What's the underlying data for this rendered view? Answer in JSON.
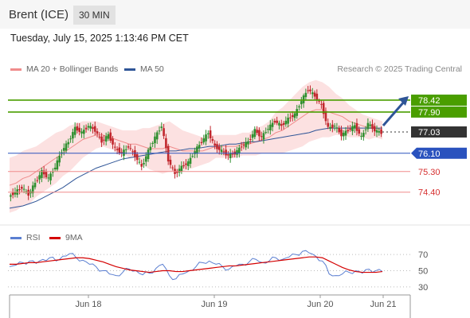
{
  "header": {
    "title": "Brent (ICE)",
    "interval": "30 MIN",
    "timestamp": "Tuesday, July 15, 2025 1:13:46 PM CET"
  },
  "legend": {
    "ma20": {
      "label": "MA 20 + Bollinger Bands",
      "color": "#f08c8c"
    },
    "ma50": {
      "label": "MA 50",
      "color": "#2f5597"
    },
    "watermark": "Research © 2025 Trading Central"
  },
  "rsi_legend": {
    "rsi": {
      "label": "RSI",
      "color": "#5b7fd1"
    },
    "ma9": {
      "label": "9MA",
      "color": "#d40000"
    }
  },
  "chart_data": [
    {
      "type": "candlestick",
      "ylim": [
        73.0,
        79.6
      ],
      "x_labels": [
        "Jun 18",
        "Jun 19",
        "Jun 20",
        "Jun 21"
      ],
      "levels": [
        {
          "value": 78.42,
          "label": "78.42",
          "color": "#4a9e00",
          "style": "resistance"
        },
        {
          "value": 77.9,
          "label": "77.90",
          "color": "#4a9e00",
          "style": "resistance"
        },
        {
          "value": 77.03,
          "label": "77.03",
          "color": "#333333",
          "style": "last-price"
        },
        {
          "value": 76.1,
          "label": "76.10",
          "color": "#2a52be",
          "style": "pivot"
        },
        {
          "value": 75.3,
          "label": "75.30",
          "color": "#d62f2f",
          "style": "support"
        },
        {
          "value": 74.4,
          "label": "74.40",
          "color": "#d62f2f",
          "style": "support"
        }
      ],
      "close_path": [
        74.2,
        74.4,
        74.6,
        74.3,
        74.8,
        75.3,
        75.0,
        75.5,
        76.2,
        76.6,
        77.2,
        77.0,
        77.3,
        77.1,
        76.6,
        76.9,
        76.3,
        76.1,
        76.4,
        76.0,
        75.5,
        76.2,
        76.8,
        77.3,
        75.8,
        75.2,
        75.5,
        75.7,
        76.2,
        76.6,
        77.0,
        76.4,
        76.2,
        76.0,
        76.1,
        76.4,
        76.6,
        77.1,
        76.8,
        77.2,
        77.5,
        77.3,
        77.6,
        77.8,
        78.4,
        78.9,
        78.6,
        78.2,
        77.2,
        77.3,
        76.9,
        77.1,
        77.3,
        76.8,
        77.4,
        77.1,
        77.0
      ],
      "ma20": [
        74.7,
        74.8,
        75.0,
        75.1,
        75.3,
        75.5,
        75.7,
        75.9,
        76.1,
        76.3,
        76.5,
        76.7,
        76.8,
        76.9,
        76.9,
        76.8,
        76.7,
        76.6,
        76.5,
        76.5,
        76.4,
        76.3,
        76.3,
        76.3,
        76.4,
        76.3,
        76.2,
        76.2,
        76.2,
        76.2,
        76.3,
        76.4,
        76.4,
        76.4,
        76.4,
        76.5,
        76.5,
        76.6,
        76.7,
        76.8,
        77.0,
        77.1,
        77.3,
        77.5,
        77.7,
        77.9,
        78.0,
        78.0,
        77.9,
        77.8,
        77.7,
        77.5,
        77.4,
        77.3,
        77.2,
        77.2,
        77.1
      ],
      "ma50": [
        73.7,
        73.75,
        73.8,
        73.9,
        74.0,
        74.15,
        74.3,
        74.45,
        74.6,
        74.8,
        75.0,
        75.15,
        75.3,
        75.45,
        75.55,
        75.65,
        75.75,
        75.85,
        75.9,
        75.95,
        76.0,
        76.05,
        76.1,
        76.15,
        76.2,
        76.2,
        76.25,
        76.3,
        76.3,
        76.35,
        76.4,
        76.4,
        76.45,
        76.5,
        76.5,
        76.55,
        76.6,
        76.6,
        76.65,
        76.7,
        76.75,
        76.8,
        76.85,
        76.9,
        76.95,
        77.0,
        77.1,
        77.15,
        77.2,
        77.2,
        77.2,
        77.2,
        77.2,
        77.2,
        77.2,
        77.2,
        77.2
      ],
      "bb_width": [
        1.2,
        1.2,
        1.2,
        1.2,
        1.1,
        1.1,
        1.1,
        1.1,
        1.0,
        1.0,
        0.9,
        0.8,
        0.7,
        0.6,
        0.5,
        0.5,
        0.5,
        0.5,
        0.6,
        0.6,
        0.8,
        0.9,
        1.0,
        1.1,
        1.1,
        1.0,
        0.9,
        0.8,
        0.7,
        0.6,
        0.6,
        0.5,
        0.5,
        0.5,
        0.5,
        0.5,
        0.5,
        0.6,
        0.6,
        0.7,
        0.9,
        1.0,
        1.1,
        1.2,
        1.3,
        1.3,
        1.3,
        1.2,
        1.1,
        0.9,
        0.8,
        0.7,
        0.6,
        0.5,
        0.5,
        0.4,
        0.4
      ]
    },
    {
      "type": "line",
      "name": "RSI panel",
      "ylim": [
        25,
        78
      ],
      "y_ticks": [
        70,
        50,
        30
      ],
      "rsi": [
        55,
        57,
        60,
        62,
        59,
        64,
        66,
        62,
        68,
        71,
        66,
        63,
        58,
        55,
        50,
        46,
        44,
        48,
        52,
        50,
        45,
        47,
        53,
        58,
        44,
        40,
        46,
        50,
        55,
        60,
        62,
        58,
        55,
        52,
        56,
        58,
        61,
        64,
        60,
        62,
        66,
        64,
        67,
        70,
        74,
        72,
        68,
        62,
        46,
        44,
        46,
        48,
        50,
        47,
        52,
        50,
        49
      ],
      "ma9": [
        58,
        58,
        59,
        60,
        60,
        61,
        62,
        63,
        64,
        65,
        66,
        66,
        65,
        63,
        61,
        58,
        55,
        53,
        51,
        50,
        49,
        48,
        49,
        50,
        50,
        49,
        49,
        50,
        51,
        52,
        53,
        54,
        55,
        56,
        56,
        57,
        58,
        59,
        60,
        61,
        62,
        63,
        64,
        65,
        66,
        67,
        67,
        66,
        62,
        58,
        54,
        51,
        49,
        48,
        48,
        48,
        49
      ]
    }
  ]
}
